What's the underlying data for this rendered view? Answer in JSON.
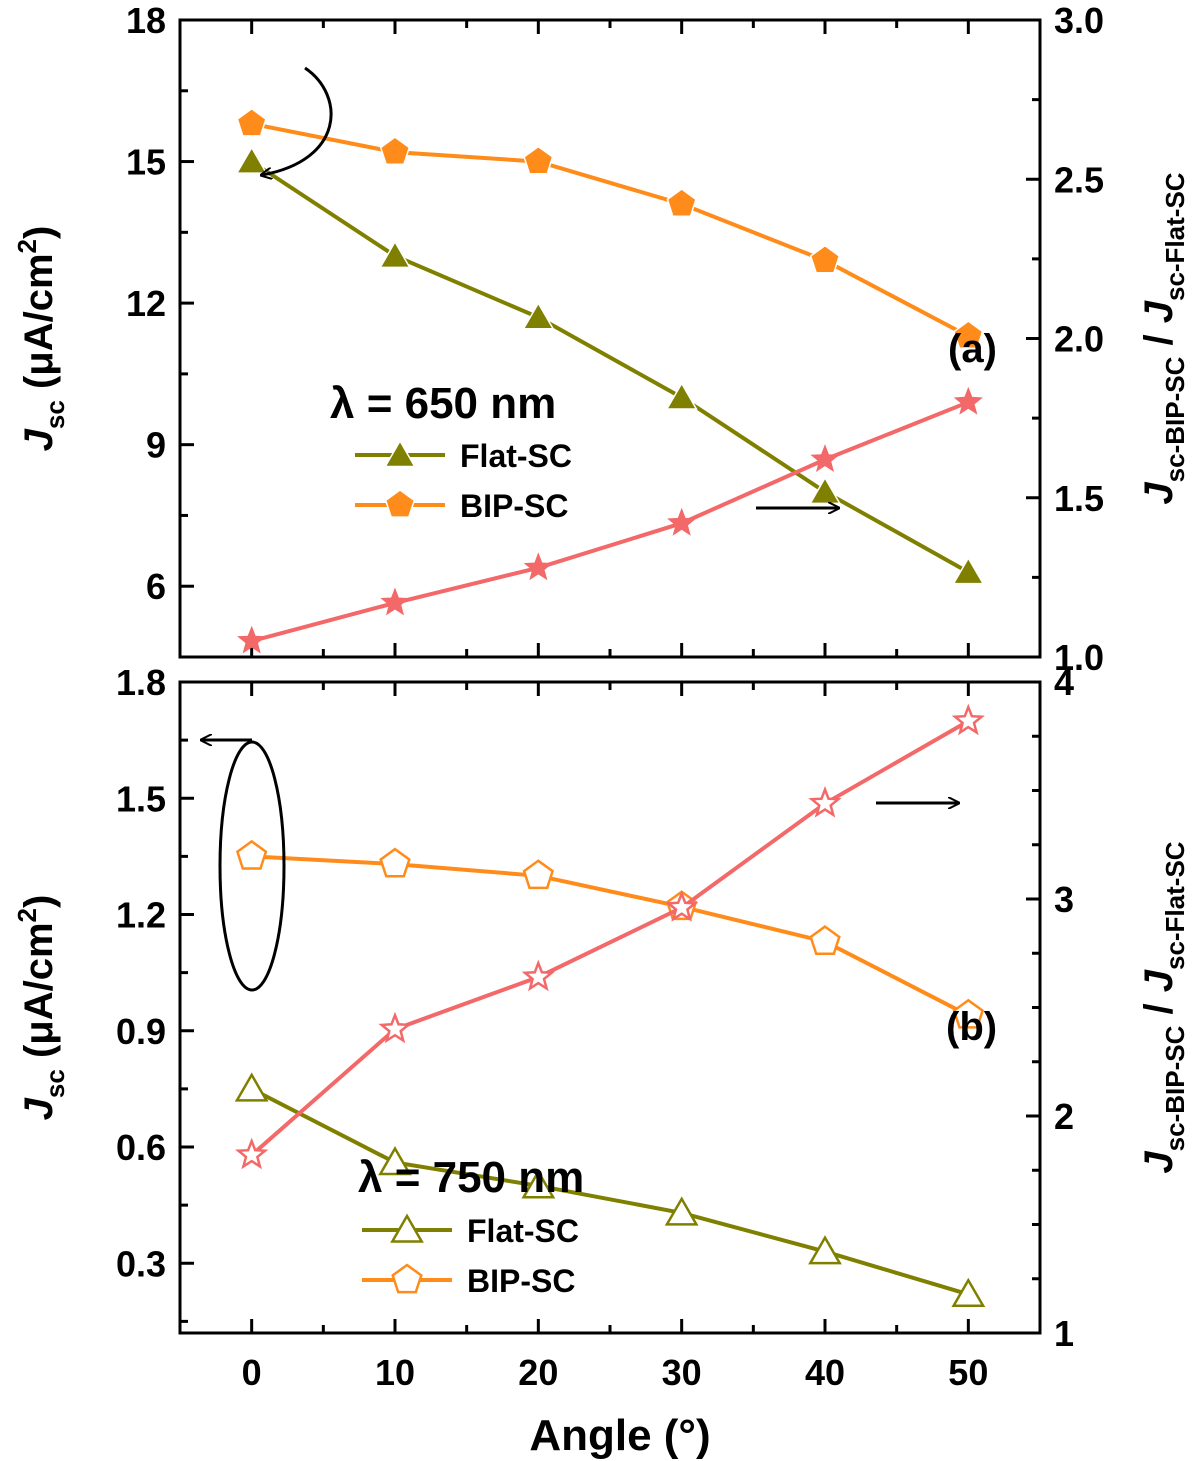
{
  "chart_data": [
    {
      "type": "line",
      "panel_label": "(a)",
      "wavelength_label": "λ = 650 nm",
      "x": [
        0,
        10,
        20,
        30,
        40,
        50
      ],
      "xlim": [
        -5,
        55
      ],
      "xticks": [
        0,
        10,
        20,
        30,
        40,
        50
      ],
      "xlabel": "Angle (°)",
      "ylabel_left": {
        "main": "J",
        "sub": "sc",
        "unit_pre": " (μA/cm",
        "sup": "2",
        "unit_post": ")"
      },
      "ylabel_right": {
        "main1": "J",
        "sub1": "sc-BIP-SC",
        "sep": " / ",
        "main2": "J",
        "sub2": "sc-Flat-SC"
      },
      "ylim_left": [
        4.5,
        18
      ],
      "yticks_left": [
        "6",
        "9",
        "12",
        "15",
        "18"
      ],
      "ylim_right": [
        1.0,
        3.0
      ],
      "yticks_right": [
        "1.0",
        "1.5",
        "2.0",
        "2.5",
        "3.0"
      ],
      "series": [
        {
          "name": "Flat-SC",
          "axis": "left",
          "color": "#808000",
          "marker": "triangle",
          "filled": true,
          "values": [
            15.0,
            13.0,
            11.7,
            10.0,
            8.0,
            6.3
          ]
        },
        {
          "name": "BIP-SC",
          "axis": "left",
          "color": "#ff8c1a",
          "marker": "pentagon",
          "filled": true,
          "values": [
            15.8,
            15.2,
            15.0,
            14.1,
            12.9,
            11.3
          ]
        },
        {
          "name": "ratio",
          "axis": "right",
          "color": "#f36868",
          "marker": "star",
          "filled": true,
          "legend": false,
          "values": [
            1.05,
            1.17,
            1.28,
            1.42,
            1.62,
            1.8
          ]
        }
      ]
    },
    {
      "type": "line",
      "panel_label": "(b)",
      "wavelength_label": "λ = 750 nm",
      "x": [
        0,
        10,
        20,
        30,
        40,
        50
      ],
      "xlim": [
        -5,
        55
      ],
      "xticks": [
        0,
        10,
        20,
        30,
        40,
        50
      ],
      "xlabel": "Angle (°)",
      "ylabel_left": {
        "main": "J",
        "sub": "sc",
        "unit_pre": " (μA/cm",
        "sup": "2",
        "unit_post": ")"
      },
      "ylabel_right": {
        "main1": "J",
        "sub1": "sc-BIP-SC",
        "sep": " / ",
        "main2": "J",
        "sub2": "sc-Flat-SC"
      },
      "ylim_left": [
        0.12,
        1.8
      ],
      "yticks_left": [
        "0.3",
        "0.6",
        "0.9",
        "1.2",
        "1.5",
        "1.8"
      ],
      "ylim_right": [
        1.0,
        4.0
      ],
      "yticks_right": [
        "1",
        "2",
        "3",
        "4"
      ],
      "series": [
        {
          "name": "Flat-SC",
          "axis": "left",
          "color": "#808000",
          "marker": "triangle",
          "filled": false,
          "values": [
            0.75,
            0.56,
            0.5,
            0.43,
            0.33,
            0.22
          ]
        },
        {
          "name": "BIP-SC",
          "axis": "left",
          "color": "#ff8c1a",
          "marker": "pentagon",
          "filled": false,
          "values": [
            1.35,
            1.33,
            1.3,
            1.22,
            1.13,
            0.94
          ]
        },
        {
          "name": "ratio",
          "axis": "right",
          "color": "#f36868",
          "marker": "star",
          "filled": false,
          "legend": false,
          "values": [
            1.82,
            2.4,
            2.64,
            2.96,
            3.44,
            3.82
          ]
        }
      ]
    }
  ]
}
